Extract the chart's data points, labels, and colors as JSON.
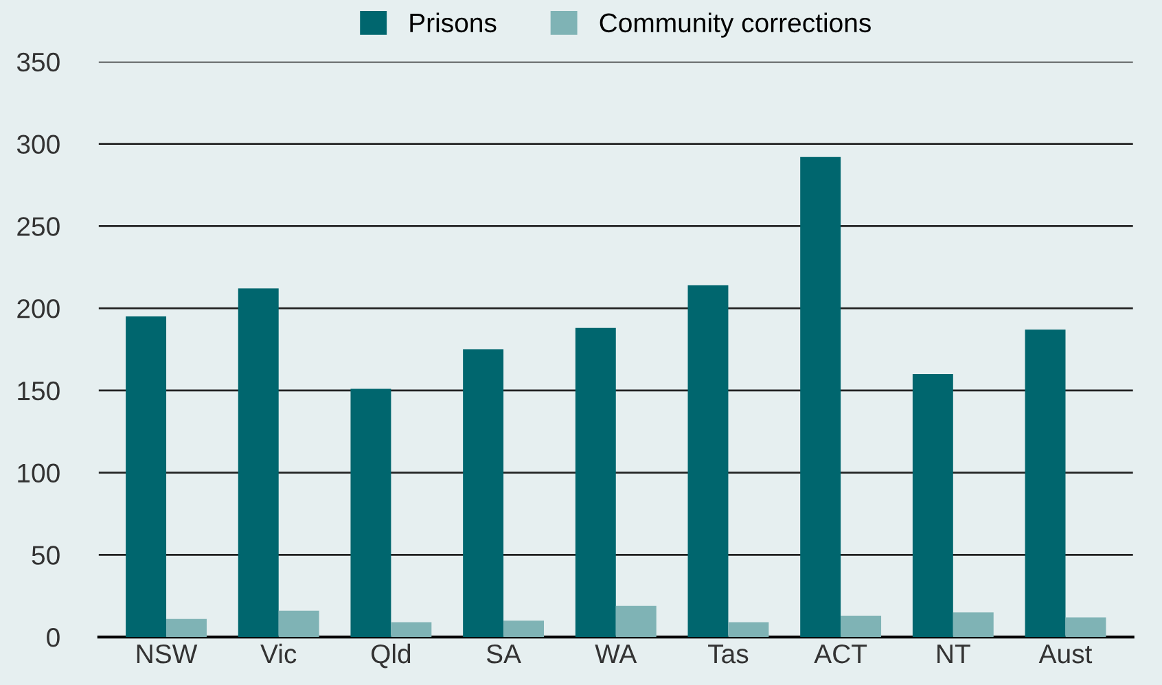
{
  "chart_data": {
    "type": "bar",
    "categories": [
      "NSW",
      "Vic",
      "Qld",
      "SA",
      "WA",
      "Tas",
      "ACT",
      "NT",
      "Aust"
    ],
    "series": [
      {
        "name": "Prisons",
        "color": "#00666e",
        "values": [
          195,
          212,
          151,
          175,
          188,
          214,
          292,
          160,
          187
        ]
      },
      {
        "name": "Community corrections",
        "color": "#7fb3b5",
        "values": [
          11,
          16,
          9,
          10,
          19,
          9,
          13,
          15,
          12
        ]
      }
    ],
    "ylim": [
      0,
      350
    ],
    "yticks": [
      0,
      50,
      100,
      150,
      200,
      250,
      300,
      350
    ],
    "grid": "y",
    "legend": "top"
  }
}
